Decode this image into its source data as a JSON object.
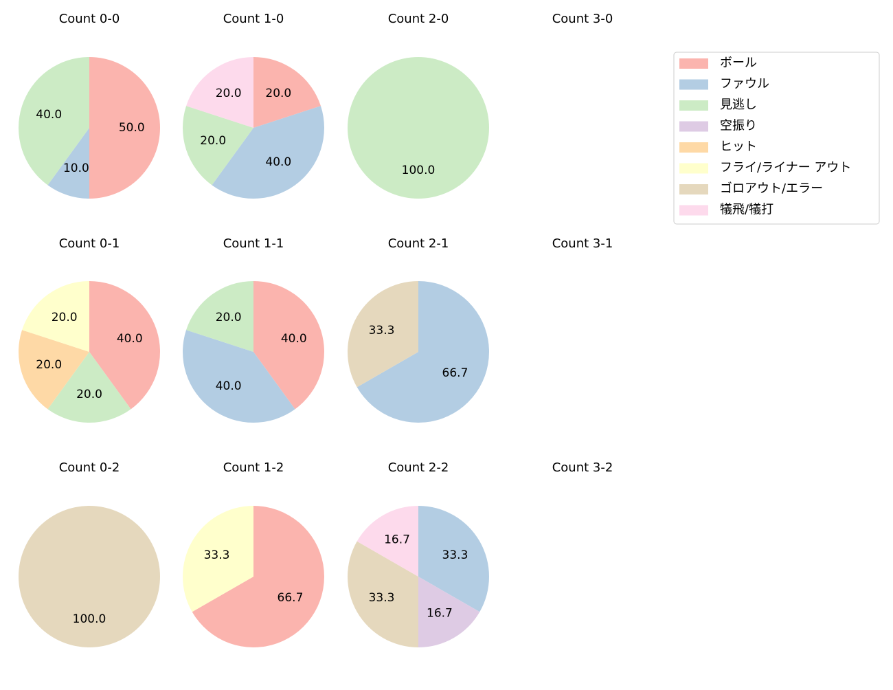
{
  "legend": {
    "items": [
      {
        "name": "ボール",
        "color": "#fbb4ae"
      },
      {
        "name": "ファウル",
        "color": "#b3cde3"
      },
      {
        "name": "見逃し",
        "color": "#ccebc5"
      },
      {
        "name": "空振り",
        "color": "#decbe4"
      },
      {
        "name": "ヒット",
        "color": "#fed9a6"
      },
      {
        "name": "フライ/ライナー アウト",
        "color": "#ffffcc"
      },
      {
        "name": "ゴロアウト/エラー",
        "color": "#e5d8bd"
      },
      {
        "name": "犠飛/犠打",
        "color": "#fddaec"
      }
    ]
  },
  "chart_data": [
    {
      "type": "pie",
      "title": "Count 0-0",
      "categories": [
        "ボール",
        "ファウル",
        "見逃し"
      ],
      "values": [
        50,
        10,
        40
      ],
      "value_labels": [
        "50.0",
        "10.0",
        "40.0"
      ]
    },
    {
      "type": "pie",
      "title": "Count 1-0",
      "categories": [
        "ボール",
        "ファウル",
        "見逃し",
        "犠飛/犠打"
      ],
      "values": [
        20,
        40,
        20,
        20
      ],
      "value_labels": [
        "20.0",
        "40.0",
        "20.0",
        "20.0"
      ]
    },
    {
      "type": "pie",
      "title": "Count 2-0",
      "categories": [
        "見逃し"
      ],
      "values": [
        100
      ],
      "value_labels": [
        "100.0"
      ]
    },
    {
      "type": "pie",
      "title": "Count 3-0"
    },
    {
      "type": "pie",
      "title": "Count 0-1",
      "categories": [
        "ボール",
        "見逃し",
        "ヒット",
        "フライ/ライナー アウト"
      ],
      "values": [
        40,
        20,
        20,
        20
      ],
      "value_labels": [
        "40.0",
        "20.0",
        "20.0",
        "20.0"
      ]
    },
    {
      "type": "pie",
      "title": "Count 1-1",
      "categories": [
        "ボール",
        "ファウル",
        "見逃し"
      ],
      "values": [
        40,
        40,
        20
      ],
      "value_labels": [
        "40.0",
        "40.0",
        "20.0"
      ]
    },
    {
      "type": "pie",
      "title": "Count 2-1",
      "categories": [
        "ファウル",
        "ゴロアウト/エラー"
      ],
      "values": [
        66.7,
        33.3
      ],
      "value_labels": [
        "66.7",
        "33.3"
      ]
    },
    {
      "type": "pie",
      "title": "Count 3-1"
    },
    {
      "type": "pie",
      "title": "Count 0-2",
      "categories": [
        "ゴロアウト/エラー"
      ],
      "values": [
        100
      ],
      "value_labels": [
        "100.0"
      ]
    },
    {
      "type": "pie",
      "title": "Count 1-2",
      "categories": [
        "ボール",
        "フライ/ライナー アウト"
      ],
      "values": [
        66.7,
        33.3
      ],
      "value_labels": [
        "66.7",
        "33.3"
      ]
    },
    {
      "type": "pie",
      "title": "Count 2-2",
      "categories": [
        "ファウル",
        "空振り",
        "ゴロアウト/エラー",
        "犠飛/犠打"
      ],
      "values": [
        33.3,
        16.7,
        33.3,
        16.7
      ],
      "value_labels": [
        "33.3",
        "16.7",
        "33.3",
        "16.7"
      ]
    },
    {
      "type": "pie",
      "title": "Count 3-2"
    }
  ]
}
